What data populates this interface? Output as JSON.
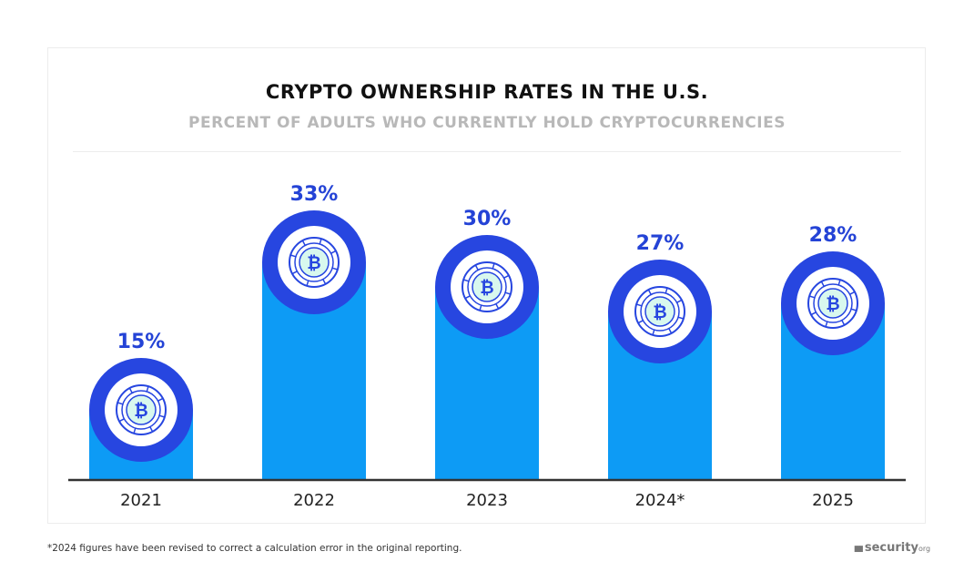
{
  "chart_data": {
    "type": "bar",
    "title": "CRYPTO OWNERSHIP RATES IN THE U.S.",
    "subtitle": "PERCENT OF ADULTS WHO CURRENTLY HOLD CRYPTOCURRENCIES",
    "categories": [
      "2021",
      "2022",
      "2023",
      "2024*",
      "2025"
    ],
    "values": [
      15,
      33,
      30,
      27,
      28
    ],
    "data_labels": [
      "15%",
      "33%",
      "30%",
      "27%",
      "28%"
    ],
    "unit": "%",
    "grid": false,
    "colors": {
      "bar": "#0d9bf5",
      "ring": "#2746e0",
      "icon_fill": "#d8f8ee",
      "text_label": "#2443d6"
    },
    "marker_icon": "bitcoin-coin-icon"
  },
  "footnote": "*2024 figures have been revised to correct a calculation error in the original reporting.",
  "logo": {
    "main": "security",
    "suffix": "org"
  }
}
